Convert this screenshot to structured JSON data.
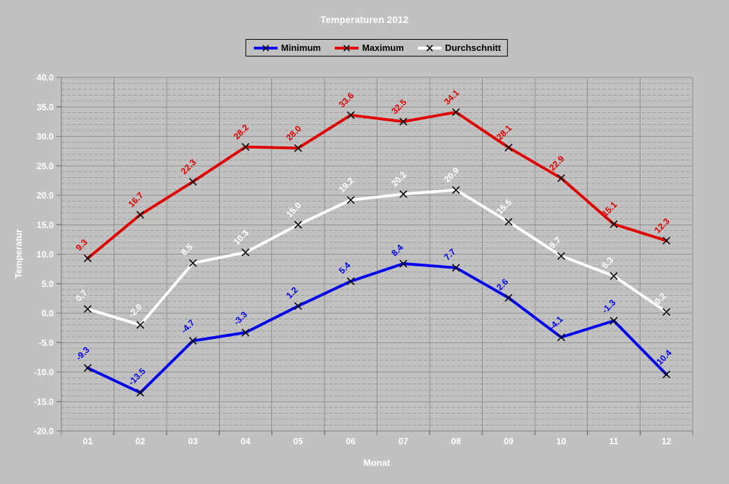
{
  "window": {
    "background": "#c1c1c1"
  },
  "title": "Temperaturen 2012",
  "legend": {
    "position": "top",
    "items": [
      {
        "label": "Minimum",
        "color": "#0000ee",
        "marker": "x"
      },
      {
        "label": "Maximum",
        "color": "#e00000",
        "marker": "x"
      },
      {
        "label": "Durchschnitt",
        "color": "#ffffff",
        "marker": "x"
      }
    ]
  },
  "chart_data": {
    "type": "line",
    "title": "Temperaturen 2012",
    "xlabel": "Monat",
    "ylabel": "Temperatur",
    "categories": [
      "01",
      "02",
      "03",
      "04",
      "05",
      "06",
      "07",
      "08",
      "09",
      "10",
      "11",
      "12"
    ],
    "series": [
      {
        "name": "Minimum",
        "color": "#0000ee",
        "values": [
          -9.3,
          -13.5,
          -4.7,
          -3.3,
          1.2,
          5.4,
          8.4,
          7.7,
          2.6,
          -4.1,
          -1.3,
          -10.4
        ],
        "labels": [
          "-9.3",
          "-13.5",
          "-4.7",
          "-3.3",
          "1.2",
          "5.4",
          "8.4",
          "7.7",
          "2.6",
          "-4.1",
          "-1.3",
          "-10.4"
        ]
      },
      {
        "name": "Maximum",
        "color": "#e00000",
        "values": [
          9.3,
          16.7,
          22.3,
          28.2,
          28.0,
          33.6,
          32.5,
          34.1,
          28.1,
          22.9,
          15.1,
          12.3
        ],
        "labels": [
          "9.3",
          "16.7",
          "22.3",
          "28.2",
          "28.0",
          "33.6",
          "32.5",
          "34.1",
          "28.1",
          "22.9",
          "15.1",
          "12.3"
        ]
      },
      {
        "name": "Durchschnitt",
        "color": "#ffffff",
        "values": [
          0.7,
          -2.0,
          8.5,
          10.3,
          15.0,
          19.2,
          20.2,
          20.9,
          15.5,
          9.7,
          6.3,
          0.2
        ],
        "labels": [
          "0.7",
          "-2.0",
          "8.5",
          "10.3",
          "15.0",
          "19.2",
          "20.2",
          "20.9",
          "15.5",
          "9.7",
          "6.3",
          "0.2"
        ]
      }
    ],
    "ylim": [
      -20,
      40
    ],
    "y_tick_step": 5,
    "y_minor_step": 1,
    "y_tick_labels": [
      "40.0",
      "35.0",
      "30.0",
      "25.0",
      "20.0",
      "15.0",
      "10.0",
      "5.0",
      "0.0",
      "-5.0",
      "-10.0",
      "-15.0",
      "-20.0"
    ],
    "grid": true,
    "legend_position": "top",
    "marker": "x",
    "marker_color": "#000000"
  },
  "colors": {
    "background": "#c1c1c1",
    "grid_major": "#8e8e8e",
    "grid_minor": "#9d9d9d",
    "axis": "#7b7b7b",
    "tick_text": "#ffffff",
    "legend_text": "#000000",
    "legend_border": "#000000"
  }
}
